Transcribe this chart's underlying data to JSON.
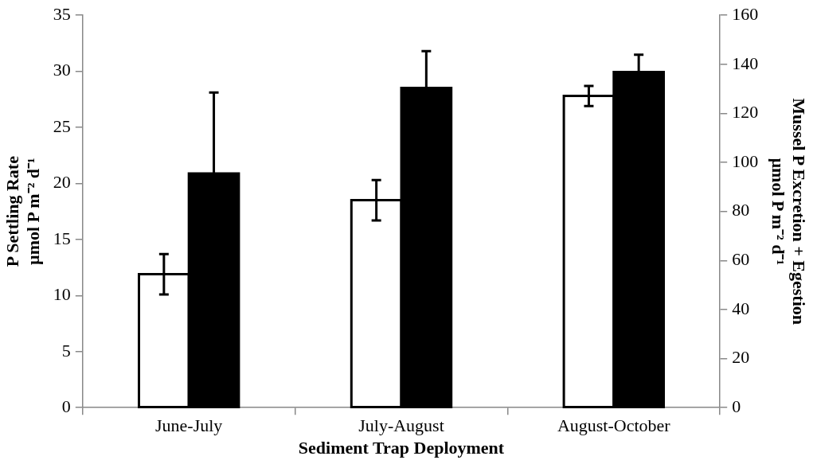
{
  "chart_data": {
    "type": "bar",
    "xlabel": "Sediment Trap Deployment",
    "ylabel": "P Settling Rate\nµmol P m⁻² d⁻¹",
    "y2label": "Mussel P Excretion + Egestion\nµmol P m⁻² d⁻¹",
    "categories": [
      "June-July",
      "July-August",
      "August-October"
    ],
    "series": [
      {
        "color": "#ffffff",
        "values": [
          11.9,
          18.5,
          27.8
        ],
        "errors": [
          1.8,
          1.8,
          0.9
        ]
      },
      {
        "color": "#000000",
        "axis": "y2",
        "values": [
          95.5,
          130.4,
          136.9
        ],
        "errors": [
          33,
          15,
          7
        ]
      }
    ],
    "ylim": [
      0,
      35
    ],
    "yticks": [
      0,
      5,
      10,
      15,
      20,
      25,
      30,
      35
    ],
    "y2lim": [
      0,
      160
    ],
    "y2ticks": [
      0,
      20,
      40,
      60,
      80,
      100,
      120,
      140,
      160
    ],
    "grid": false,
    "legend": false
  }
}
